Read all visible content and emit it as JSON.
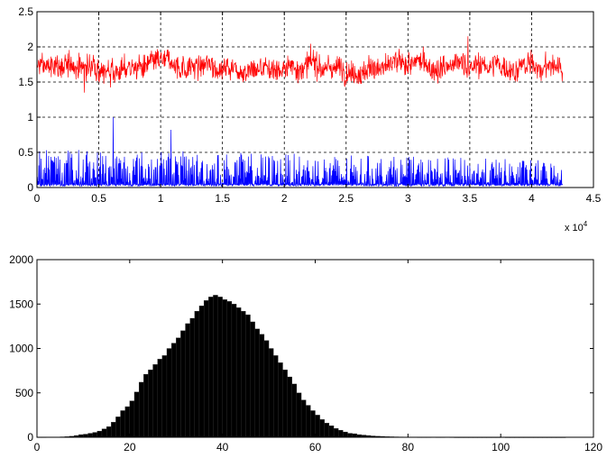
{
  "chart_data": [
    {
      "type": "line",
      "title": "",
      "xlabel": "",
      "ylabel": "",
      "xlim": [
        0,
        45000
      ],
      "ylim": [
        0,
        2.5
      ],
      "grid": true,
      "x_exponent_label": {
        "base": "x 10",
        "power": "4"
      },
      "x_ticks": [
        0,
        5000,
        10000,
        15000,
        20000,
        25000,
        30000,
        35000,
        40000,
        45000
      ],
      "x_tick_labels": [
        "0",
        "0.5",
        "1",
        "1.5",
        "2",
        "2.5",
        "3",
        "3.5",
        "4",
        "4.5"
      ],
      "y_ticks": [
        0,
        0.5,
        1,
        1.5,
        2,
        2.5
      ],
      "y_tick_labels": [
        "0",
        "0.5",
        "1",
        "1.5",
        "2",
        "2.5"
      ],
      "series": [
        {
          "color": "#ff0000",
          "x_range": [
            0,
            42500
          ],
          "mean": 1.72,
          "typical_range": [
            1.5,
            1.95
          ],
          "extremes": [
            1.3,
            2.15
          ]
        },
        {
          "color": "#0000ff",
          "x_range": [
            0,
            42500
          ],
          "baseline": 0.02,
          "typical_range": [
            0.03,
            0.6
          ],
          "extremes": [
            0,
            1.0
          ]
        }
      ]
    },
    {
      "type": "bar",
      "title": "",
      "xlabel": "",
      "ylabel": "",
      "xlim": [
        0,
        120
      ],
      "ylim": [
        0,
        2000
      ],
      "grid": false,
      "x_ticks": [
        0,
        20,
        40,
        60,
        80,
        100,
        120
      ],
      "x_tick_labels": [
        "0",
        "20",
        "40",
        "60",
        "80",
        "100",
        "120"
      ],
      "y_ticks": [
        0,
        500,
        1000,
        1500,
        2000
      ],
      "y_tick_labels": [
        "0",
        "500",
        "1000",
        "1500",
        "2000"
      ],
      "bar_color": "#000000",
      "bin_width": 1,
      "bins_start": 0,
      "values": [
        2,
        2,
        3,
        3,
        3,
        5,
        8,
        12,
        20,
        30,
        35,
        45,
        55,
        70,
        95,
        120,
        170,
        230,
        300,
        345,
        410,
        510,
        620,
        710,
        760,
        820,
        880,
        920,
        1000,
        1060,
        1120,
        1200,
        1280,
        1340,
        1420,
        1480,
        1540,
        1580,
        1600,
        1580,
        1550,
        1530,
        1500,
        1460,
        1420,
        1380,
        1300,
        1220,
        1160,
        1090,
        1000,
        920,
        840,
        760,
        680,
        600,
        500,
        420,
        360,
        300,
        250,
        200,
        160,
        130,
        100,
        80,
        60,
        45,
        40,
        30,
        25,
        20,
        15,
        12,
        10,
        8,
        6,
        5,
        4,
        3,
        3,
        3,
        2,
        2,
        2,
        3,
        2,
        2,
        3,
        2,
        1,
        1,
        1,
        1,
        1,
        1,
        1,
        1,
        1,
        1,
        2,
        1,
        1,
        1,
        1,
        1,
        1,
        1,
        1,
        1,
        1,
        1,
        1,
        1,
        0,
        0,
        0,
        0,
        0,
        0,
        0
      ]
    }
  ]
}
